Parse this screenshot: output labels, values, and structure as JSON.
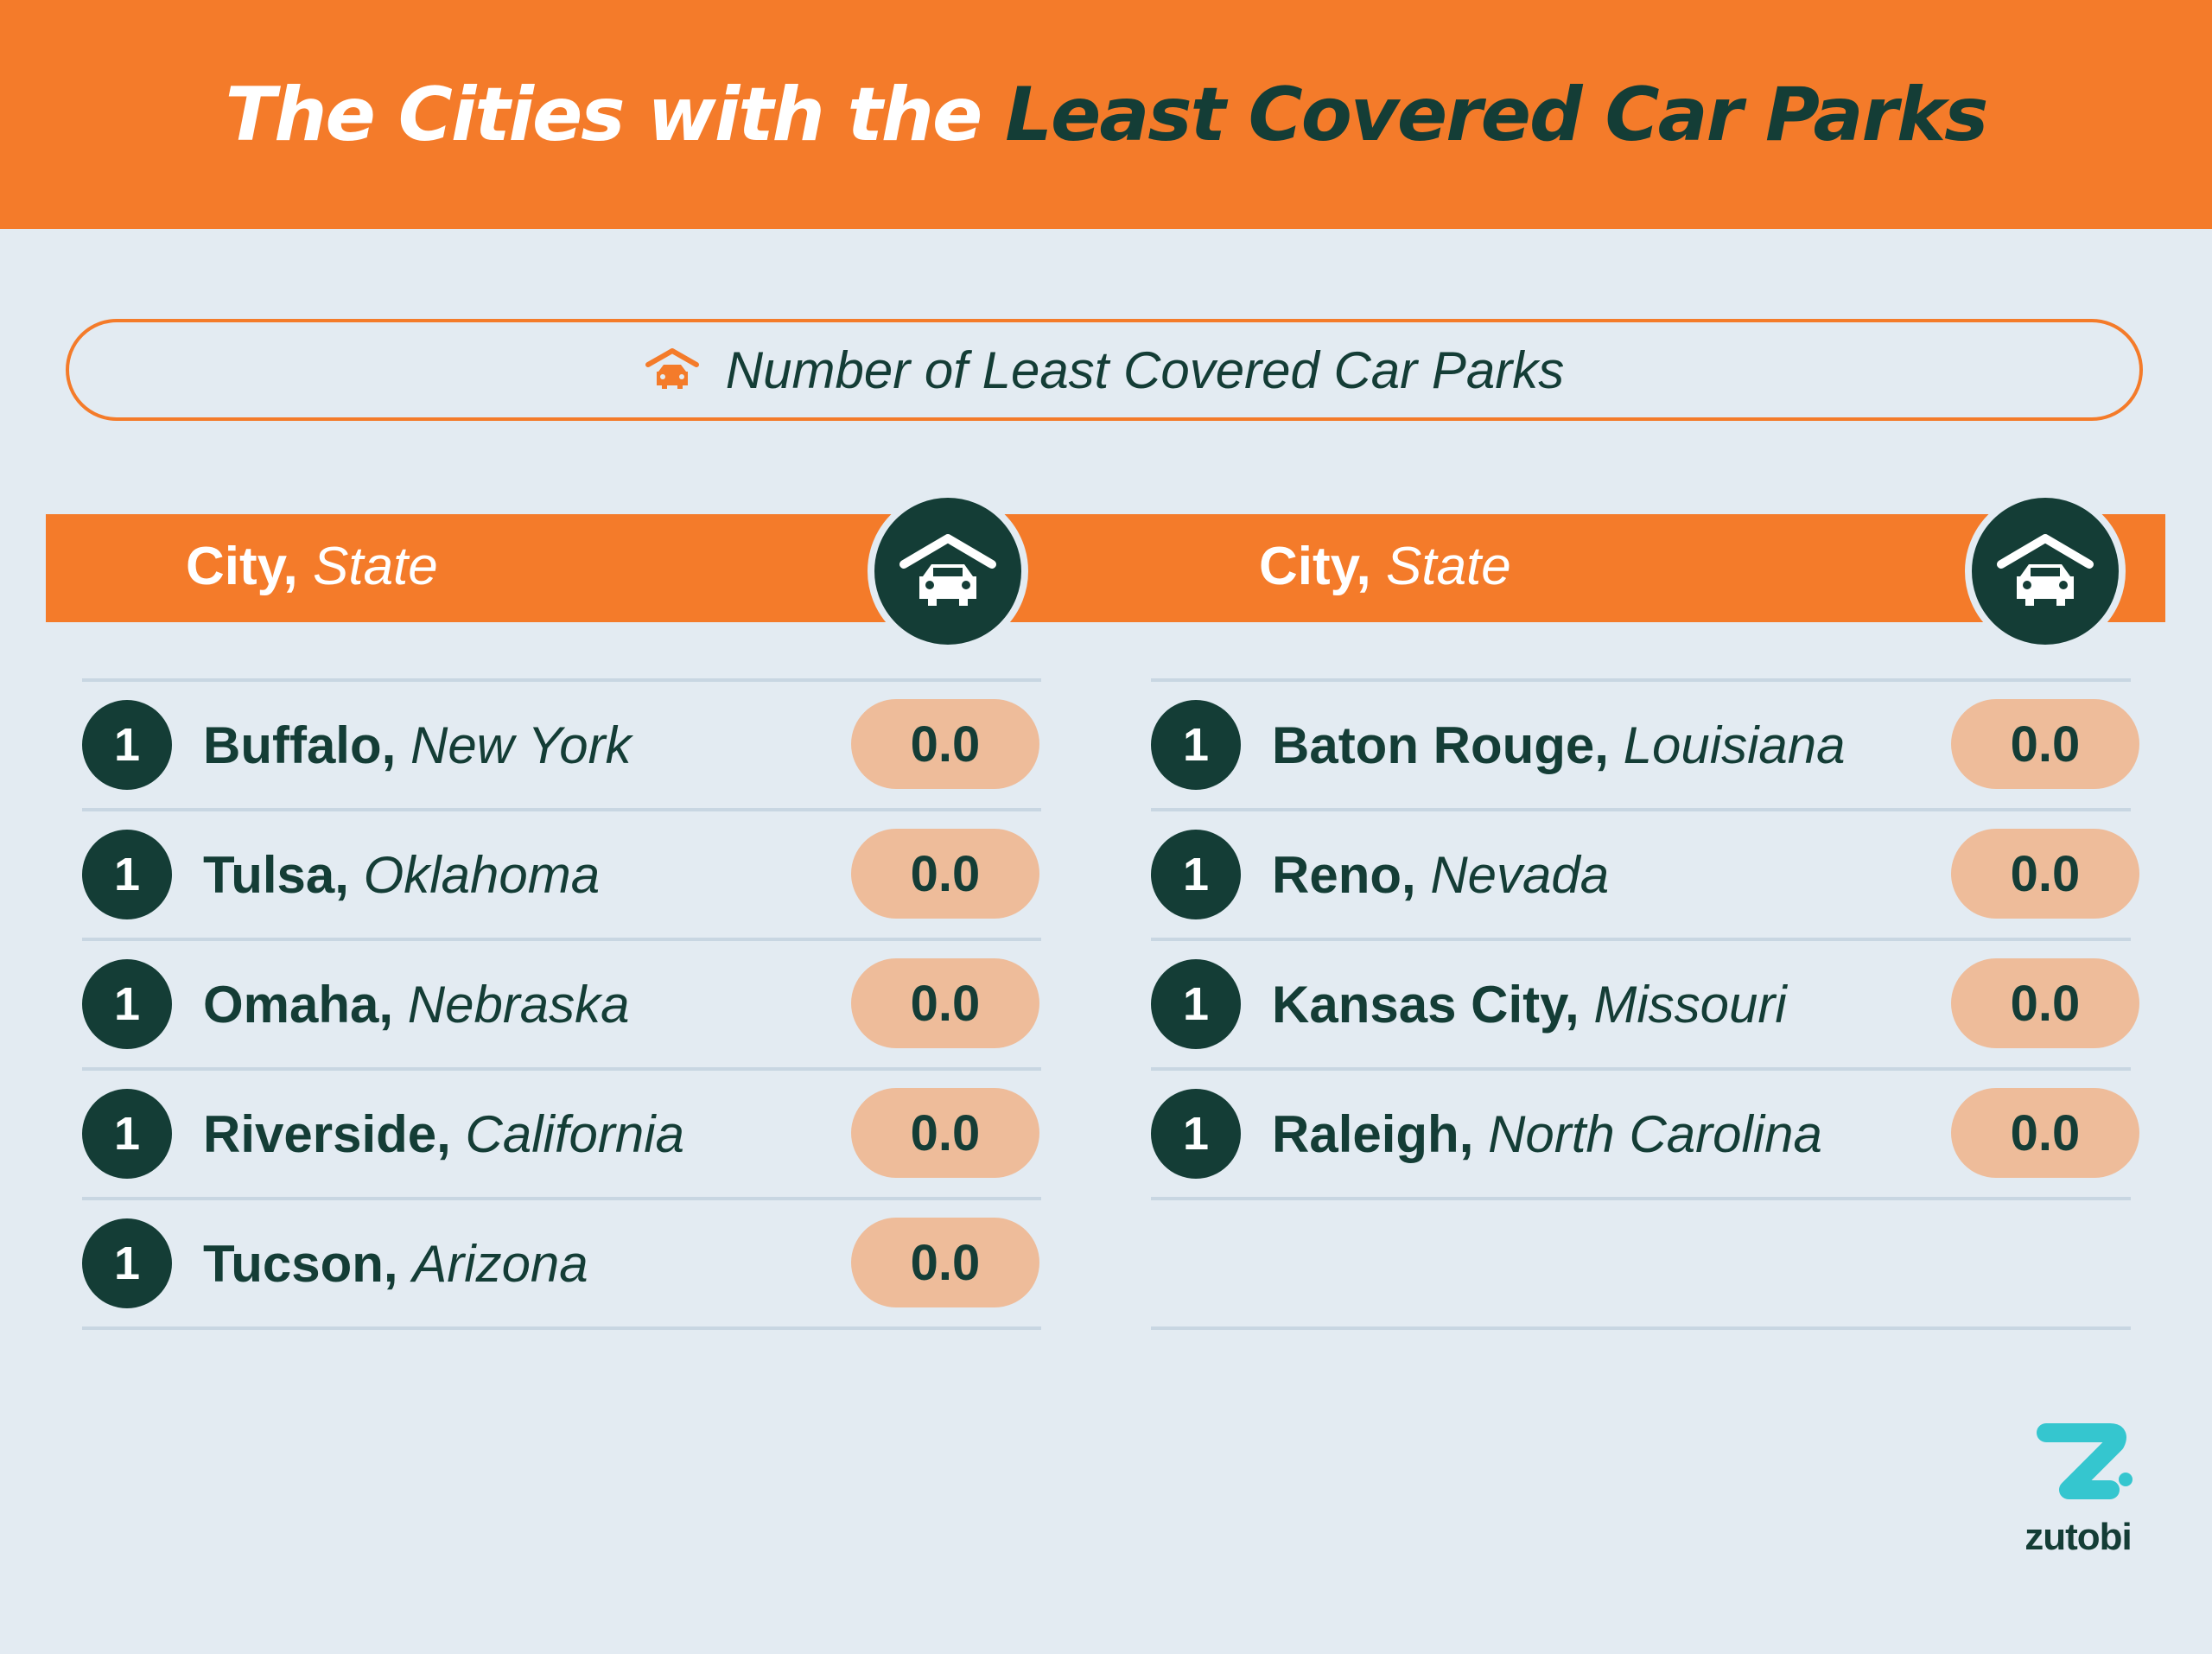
{
  "header": {
    "title_part1": "The Cities with the ",
    "title_part2": "Least Covered Car Parks"
  },
  "legend": {
    "icon": "garage-car-icon",
    "label": "Number of Least Covered Car Parks"
  },
  "columns_header": {
    "city_label": "City,",
    "state_label": "State",
    "icon": "garage-car-icon"
  },
  "left_rows": [
    {
      "rank": "1",
      "city": "Buffalo,",
      "state": "New York",
      "value": "0.0"
    },
    {
      "rank": "1",
      "city": "Tulsa,",
      "state": "Oklahoma",
      "value": "0.0"
    },
    {
      "rank": "1",
      "city": "Omaha,",
      "state": "Nebraska",
      "value": "0.0"
    },
    {
      "rank": "1",
      "city": "Riverside,",
      "state": "California",
      "value": "0.0"
    },
    {
      "rank": "1",
      "city": "Tucson,",
      "state": "Arizona",
      "value": "0.0"
    }
  ],
  "right_rows": [
    {
      "rank": "1",
      "city": "Baton Rouge,",
      "state": "Louisiana",
      "value": "0.0"
    },
    {
      "rank": "1",
      "city": "Reno,",
      "state": "Nevada",
      "value": "0.0"
    },
    {
      "rank": "1",
      "city": "Kansas City,",
      "state": "Missouri",
      "value": "0.0"
    },
    {
      "rank": "1",
      "city": "Raleigh,",
      "state": "North Carolina",
      "value": "0.0"
    }
  ],
  "logo": {
    "text": "zutobi"
  },
  "colors": {
    "accent": "#f47b2a",
    "dark": "#143d36",
    "background": "#e3ebf2",
    "value_pill": "#eebc9a",
    "logo_teal": "#35c6cf"
  }
}
